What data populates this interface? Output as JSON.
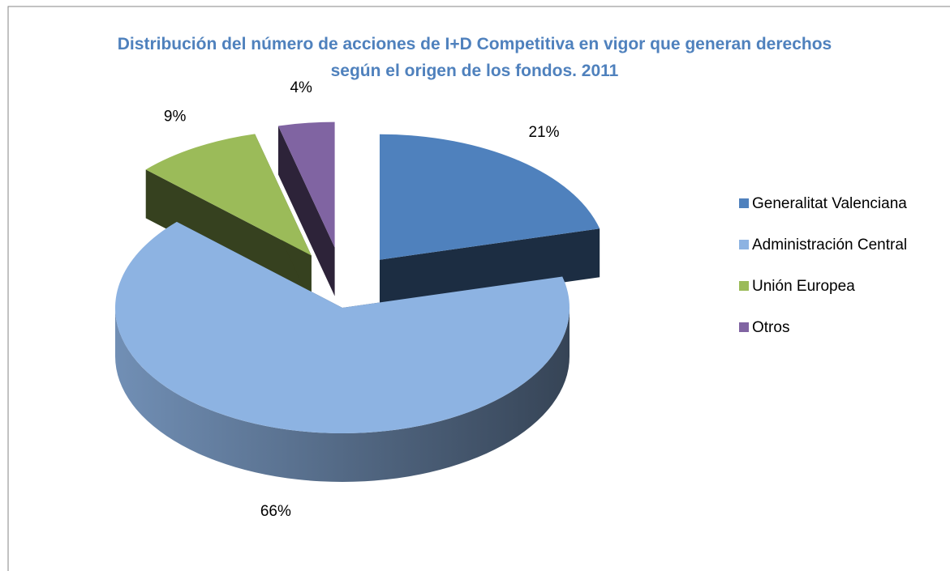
{
  "chart_data": {
    "type": "pie",
    "title": "Distribución del número de acciones de I+D Competitiva en vigor que generan derechos según el origen de los fondos. 2011",
    "categories": [
      "Generalitat Valenciana",
      "Administración Central",
      "Unión Europea",
      "Otros"
    ],
    "values": [
      21,
      66,
      9,
      4
    ],
    "value_labels": [
      "21%",
      "66%",
      "9%",
      "4%"
    ],
    "colors": [
      "#4f81bd",
      "#8db3e2",
      "#9bbb59",
      "#8064a2"
    ],
    "legend": "right"
  }
}
